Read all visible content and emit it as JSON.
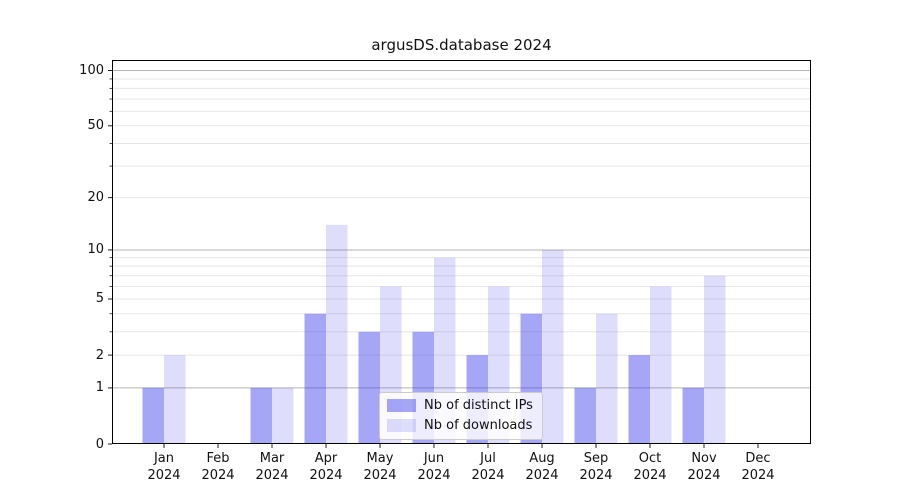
{
  "title": "argusDS.database 2024",
  "chart_data": {
    "type": "bar",
    "title": "argusDS.database 2024",
    "categories": [
      {
        "month": "Jan",
        "year": "2024"
      },
      {
        "month": "Feb",
        "year": "2024"
      },
      {
        "month": "Mar",
        "year": "2024"
      },
      {
        "month": "Apr",
        "year": "2024"
      },
      {
        "month": "May",
        "year": "2024"
      },
      {
        "month": "Jun",
        "year": "2024"
      },
      {
        "month": "Jul",
        "year": "2024"
      },
      {
        "month": "Aug",
        "year": "2024"
      },
      {
        "month": "Sep",
        "year": "2024"
      },
      {
        "month": "Oct",
        "year": "2024"
      },
      {
        "month": "Nov",
        "year": "2024"
      },
      {
        "month": "Dec",
        "year": "2024"
      }
    ],
    "series": [
      {
        "key": "distinct-ips",
        "name": "Nb of distinct IPs",
        "fill": "rgba(58,58,238,0.45)",
        "values": [
          1,
          0,
          1,
          4,
          3,
          3,
          2,
          4,
          1,
          2,
          1,
          0
        ]
      },
      {
        "key": "downloads",
        "name": "Nb of downloads",
        "fill": "rgba(58,58,238,0.17)",
        "values": [
          2,
          0,
          1,
          14,
          6,
          9,
          6,
          10,
          4,
          6,
          7,
          0
        ]
      }
    ],
    "xlabel": "",
    "ylabel": "",
    "yscale": "log1p",
    "ylim": [
      0,
      114
    ],
    "y_tick_labels": [
      "0",
      "1",
      "2",
      "5",
      "10",
      "20",
      "50",
      "100"
    ],
    "y_major_gridlines": [
      1,
      10,
      100
    ],
    "y_minor_gridlines": [
      2,
      3,
      4,
      5,
      6,
      7,
      8,
      9,
      20,
      30,
      40,
      50,
      60,
      70,
      80,
      90
    ],
    "grid": true,
    "legend_position": "lower center"
  },
  "colors": {
    "grid_major": "#b5b5b5",
    "grid_minor": "#e7e7e7",
    "spine": "#000000",
    "tick": "#222222"
  }
}
